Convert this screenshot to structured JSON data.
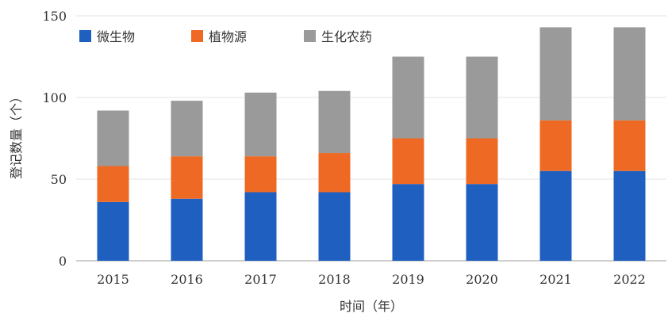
{
  "chart_data": {
    "type": "bar",
    "stacked": true,
    "categories": [
      "2015",
      "2016",
      "2017",
      "2018",
      "2019",
      "2020",
      "2021",
      "2022"
    ],
    "series": [
      {
        "name": "微生物",
        "color": "#1f5fbf",
        "values": [
          36,
          38,
          42,
          42,
          47,
          47,
          55,
          55
        ]
      },
      {
        "name": "植物源",
        "color": "#ee6a24",
        "values": [
          22,
          26,
          22,
          24,
          28,
          28,
          31,
          31
        ]
      },
      {
        "name": "生化农药",
        "color": "#9a9a9a",
        "values": [
          34,
          34,
          39,
          38,
          50,
          50,
          57,
          57
        ]
      }
    ],
    "xlabel": "时间（年）",
    "ylabel": "登记数量（个）",
    "ylim": [
      0,
      150
    ],
    "yticks": [
      0,
      50,
      100,
      150
    ],
    "grid": true,
    "legend": "top-left"
  }
}
